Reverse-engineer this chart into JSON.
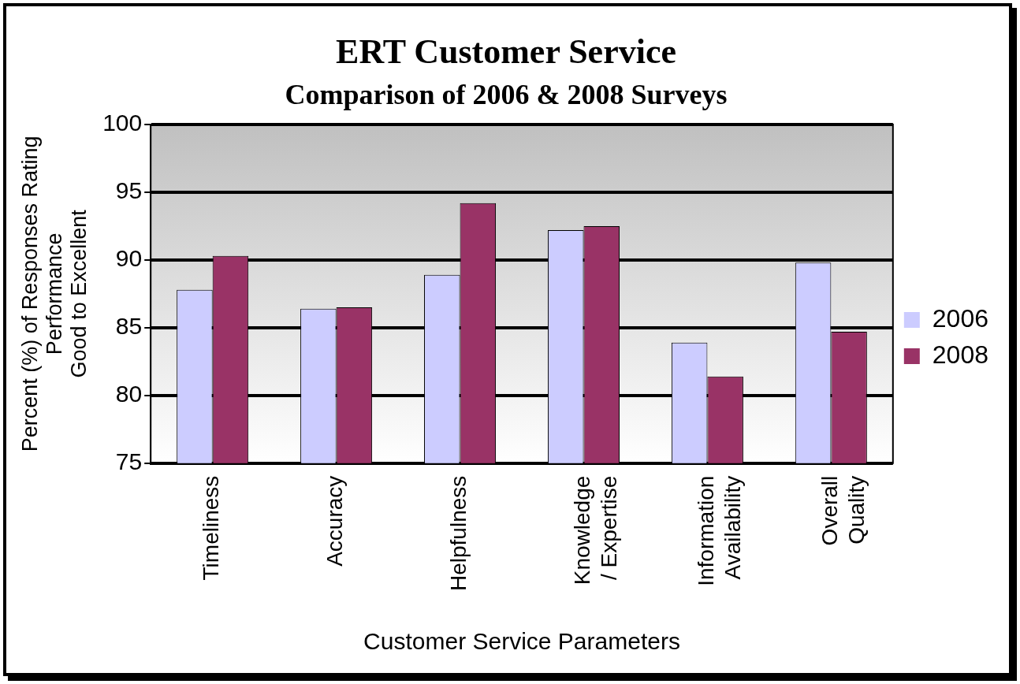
{
  "chart_data": {
    "type": "bar",
    "title": "ERT Customer Service",
    "subtitle": "Comparison of 2006 & 2008 Surveys",
    "xlabel": "Customer Service Parameters",
    "ylabel": "Percent (%) of Responses Rating\nPerformance\nGood to Excellent",
    "categories": [
      "Timeliness",
      "Accuracy",
      "Helpfulness",
      "Knowledge / Expertise",
      "Information Availability",
      "Overall Quality"
    ],
    "series": [
      {
        "name": "2006",
        "color": "#ccccff",
        "values": [
          87.8,
          86.4,
          88.9,
          92.2,
          83.9,
          89.8
        ]
      },
      {
        "name": "2008",
        "color": "#993366",
        "values": [
          90.3,
          86.5,
          94.2,
          92.5,
          81.4,
          84.7
        ]
      }
    ],
    "ylim": [
      75,
      100
    ],
    "yticks": [
      75,
      80,
      85,
      90,
      95,
      100
    ],
    "grid": "y",
    "legend": "right"
  }
}
